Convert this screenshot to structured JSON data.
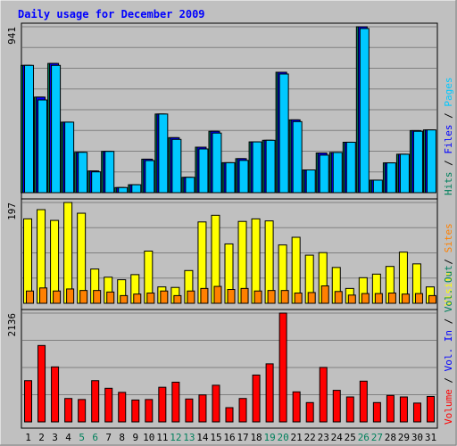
{
  "chart_data": {
    "type": "bar",
    "title": "Daily usage for December 2009",
    "colors": {
      "background": "#C0C0C0",
      "title": "#0000FF",
      "hits": "#00805C",
      "files": "#0000FF",
      "pages": "#00C8FF",
      "visits": "#FFFF00",
      "sites": "#FF8000",
      "volume": "#FF0000",
      "weekend_label": "#00805C",
      "weekday_label": "#000000"
    },
    "days": [
      "1",
      "2",
      "3",
      "4",
      "5",
      "6",
      "7",
      "8",
      "9",
      "10",
      "11",
      "12",
      "13",
      "14",
      "15",
      "16",
      "17",
      "18",
      "19",
      "20",
      "21",
      "22",
      "23",
      "24",
      "25",
      "26",
      "27",
      "28",
      "29",
      "30",
      "31"
    ],
    "weekend_days": [
      5,
      6,
      12,
      13,
      19,
      20,
      26,
      27
    ],
    "panels": [
      {
        "name": "traffic",
        "max_label": "941",
        "ymax": 941,
        "legend": [
          {
            "text": "Hits",
            "color": "#00805C"
          },
          {
            "text": "Files",
            "color": "#0000FF"
          },
          {
            "text": "Pages",
            "color": "#00C8FF"
          }
        ],
        "series": [
          {
            "name": "Hits",
            "color": "#00805C",
            "values": [
              722,
              542,
              733,
              400,
              229,
              123,
              234,
              29,
              45,
              190,
              446,
              312,
              87,
              258,
              348,
              170,
              193,
              288,
              297,
              683,
              413,
              129,
              225,
              228,
              286,
              941,
              71,
              169,
              218,
              352,
              356
            ]
          },
          {
            "name": "Files",
            "color": "#0000FF",
            "values": [
              722,
              542,
              733,
              400,
              229,
              123,
              234,
              29,
              45,
              190,
              446,
              312,
              87,
              258,
              348,
              170,
              193,
              288,
              297,
              683,
              413,
              129,
              225,
              228,
              286,
              941,
              71,
              169,
              218,
              352,
              356
            ]
          },
          {
            "name": "Pages",
            "color": "#00C8FF",
            "values": [
              722,
              526,
              722,
              400,
              229,
              118,
              234,
              29,
              45,
              182,
              446,
              302,
              87,
              248,
              338,
              170,
              183,
              288,
              297,
              673,
              403,
              129,
              213,
              228,
              286,
              931,
              71,
              169,
              218,
              348,
              356
            ]
          }
        ]
      },
      {
        "name": "visitors",
        "max_label": "197",
        "ymax": 197,
        "legend": [
          {
            "text": "Visits",
            "color": "#FFFF00"
          },
          {
            "text": "Sites",
            "color": "#FF8000"
          }
        ],
        "series": [
          {
            "name": "Visits",
            "color": "#FFFF00",
            "values": [
              165,
              183,
              162,
              197,
              176,
              67,
              51,
              46,
              56,
              102,
              32,
              31,
              64,
              159,
              172,
              116,
              160,
              165,
              161,
              114,
              129,
              94,
              99,
              70,
              29,
              50,
              57,
              72,
              100,
              77,
              32
            ]
          },
          {
            "name": "Sites",
            "color": "#FF8000",
            "values": [
              24,
              30,
              24,
              28,
              25,
              25,
              22,
              15,
              18,
              20,
              24,
              15,
              24,
              29,
              33,
              27,
              29,
              24,
              25,
              25,
              20,
              21,
              34,
              23,
              16,
              19,
              19,
              20,
              18,
              19,
              15
            ]
          }
        ]
      },
      {
        "name": "volume",
        "max_label": "2136",
        "ymax": 2136,
        "legend": [
          {
            "text": "Volume",
            "color": "#FF0000"
          },
          {
            "text": "Vol. In",
            "color": "#0000FF"
          },
          {
            "text": "Vol. Out",
            "color": "#00805C"
          }
        ],
        "series": [
          {
            "name": "Volume",
            "color": "#FF0000",
            "values": [
              810,
              1500,
              1080,
              460,
              440,
              810,
              660,
              580,
              430,
              440,
              680,
              780,
              450,
              530,
              720,
              280,
              460,
              920,
              1140,
              2136,
              590,
              380,
              1070,
              620,
              490,
              800,
              380,
              520,
              490,
              370,
              500
            ]
          }
        ]
      }
    ]
  }
}
